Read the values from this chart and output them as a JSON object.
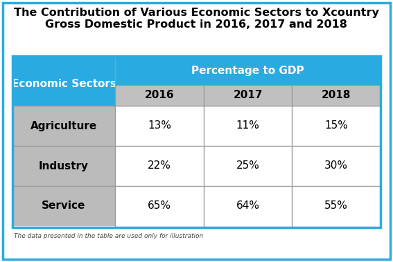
{
  "title_line1": "The Contribution of Various Economic Sectors to Xcountry",
  "title_line2": "Gross Domestic Product in 2016, 2017 and 2018",
  "header_col": "Economic Sectors",
  "header_span": "Percentage to GDP",
  "years": [
    "2016",
    "2017",
    "2018"
  ],
  "sectors": [
    "Agriculture",
    "Industry",
    "Service"
  ],
  "values": [
    [
      "13%",
      "11%",
      "15%"
    ],
    [
      "22%",
      "25%",
      "30%"
    ],
    [
      "65%",
      "64%",
      "55%"
    ]
  ],
  "footnote": "The data presented in the table are used only for illustration",
  "header_bg": "#29ABE2",
  "header_text": "#FFFFFF",
  "subheader_bg": "#C0C0C0",
  "subheader_text": "#000000",
  "sector_cell_bg": "#BBBBBB",
  "data_cell_bg": "#FFFFFF",
  "cell_text": "#000000",
  "border_color": "#29ABE2",
  "divider_color": "#999999",
  "title_fontsize": 11.5,
  "header_fontsize": 11,
  "year_fontsize": 11,
  "cell_fontsize": 11,
  "sector_fontsize": 11,
  "footnote_fontsize": 6.5,
  "fig_bg": "#FFFFFF",
  "outer_border_lw": 2.5
}
